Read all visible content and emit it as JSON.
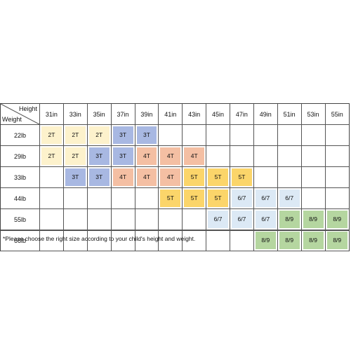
{
  "header": {
    "height_label": "Height",
    "weight_label": "Weight"
  },
  "heights": [
    "31in",
    "33in",
    "35in",
    "37in",
    "39in",
    "41in",
    "43in",
    "45in",
    "47in",
    "49in",
    "51in",
    "53in",
    "55in"
  ],
  "rows": [
    {
      "weight": "22lb",
      "sizes": [
        "2T",
        "2T",
        "2T",
        "3T",
        "3T",
        "",
        "",
        "",
        "",
        "",
        "",
        "",
        ""
      ]
    },
    {
      "weight": "29lb",
      "sizes": [
        "2T",
        "2T",
        "3T",
        "3T",
        "4T",
        "4T",
        "4T",
        "",
        "",
        "",
        "",
        "",
        ""
      ]
    },
    {
      "weight": "33lb",
      "sizes": [
        "",
        "3T",
        "3T",
        "4T",
        "4T",
        "4T",
        "5T",
        "5T",
        "5T",
        "",
        "",
        "",
        ""
      ]
    },
    {
      "weight": "44lb",
      "sizes": [
        "",
        "",
        "",
        "",
        "",
        "5T",
        "5T",
        "5T",
        "6/7",
        "6/7",
        "6/7",
        "",
        ""
      ]
    },
    {
      "weight": "55lb",
      "sizes": [
        "",
        "",
        "",
        "",
        "",
        "",
        "",
        "6/7",
        "6/7",
        "6/7",
        "8/9",
        "8/9",
        "8/9"
      ]
    },
    {
      "weight": "66lb",
      "sizes": [
        "",
        "",
        "",
        "",
        "",
        "",
        "",
        "",
        "",
        "8/9",
        "8/9",
        "8/9",
        "8/9"
      ]
    }
  ],
  "size_colors": {
    "2T": "#fdf2cc",
    "3T": "#a8b8e2",
    "4T": "#f4bfa3",
    "5T": "#fbd56a",
    "6/7": "#dce9f5",
    "8/9": "#b5d6a0"
  },
  "note": "*Please choose the right size according to your child's height and weight."
}
